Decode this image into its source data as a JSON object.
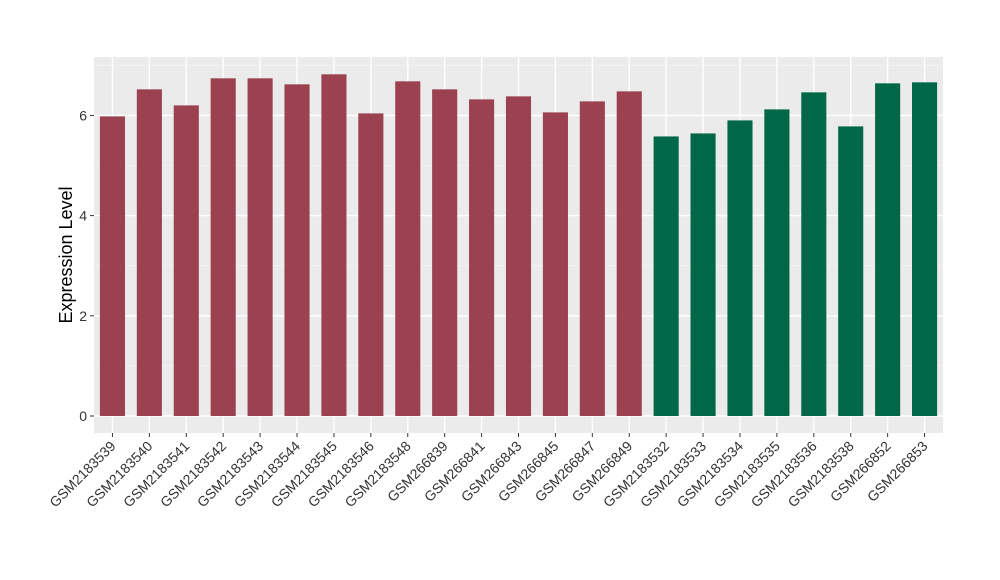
{
  "chart_data": {
    "type": "bar",
    "title": "",
    "xlabel": "",
    "ylabel": "Expression Level",
    "ylim": [
      0,
      7.2
    ],
    "yticks": [
      0,
      2,
      4,
      6
    ],
    "grid": true,
    "background": "#ebebeb",
    "categories": [
      "GSM2183539",
      "GSM2183540",
      "GSM2183541",
      "GSM2183542",
      "GSM2183543",
      "GSM2183544",
      "GSM2183545",
      "GSM2183546",
      "GSM2183548",
      "GSM266839",
      "GSM266841",
      "GSM266843",
      "GSM266845",
      "GSM266847",
      "GSM266849",
      "GSM2183532",
      "GSM2183533",
      "GSM2183534",
      "GSM2183535",
      "GSM2183536",
      "GSM2183538",
      "GSM266852",
      "GSM266853"
    ],
    "values": [
      5.98,
      6.52,
      6.2,
      6.74,
      6.74,
      6.62,
      6.82,
      6.04,
      6.68,
      6.52,
      6.32,
      6.38,
      6.06,
      6.28,
      6.48,
      5.58,
      5.64,
      5.9,
      6.12,
      6.46,
      5.78,
      6.64,
      6.66
    ],
    "bar_colors": [
      "#9b4150",
      "#9b4150",
      "#9b4150",
      "#9b4150",
      "#9b4150",
      "#9b4150",
      "#9b4150",
      "#9b4150",
      "#9b4150",
      "#9b4150",
      "#9b4150",
      "#9b4150",
      "#9b4150",
      "#9b4150",
      "#9b4150",
      "#006847",
      "#006847",
      "#006847",
      "#006847",
      "#006847",
      "#006847",
      "#006847",
      "#006847"
    ]
  }
}
